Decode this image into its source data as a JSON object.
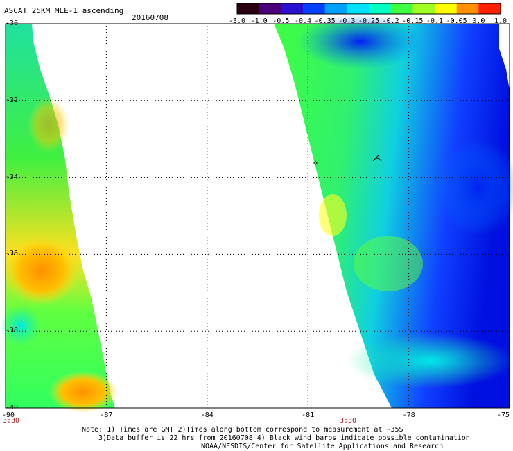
{
  "header": {
    "title": "ASCAT 25KM MLE-1 ascending",
    "date": "20160708"
  },
  "colorbar": {
    "labels": [
      "-3.0",
      "-1.0",
      "-0.5",
      "-0.4",
      "-0.35",
      "-0.3",
      "-0.25",
      "-0.2",
      "-0.15",
      "-0.1",
      "-0.05",
      "0.0",
      "1.0"
    ],
    "colors": [
      "#2a0010",
      "#4a007a",
      "#2a10d0",
      "#0040ff",
      "#00a0ff",
      "#00e0ff",
      "#00ffc0",
      "#40ff40",
      "#a0ff20",
      "#ffff00",
      "#ff9000",
      "#ff2000"
    ]
  },
  "axes": {
    "lat_labels": [
      "-30",
      "-32",
      "-34",
      "-36",
      "-38",
      "-40"
    ],
    "lon_labels": [
      "-90",
      "-87",
      "-84",
      "-81",
      "-78",
      "-75"
    ]
  },
  "times": {
    "left": "3:30",
    "right": "3:30"
  },
  "notes": {
    "line1": "Note: 1) Times are GMT 2)Times along bottom correspond to measurement at ~35S",
    "line2": "3)Data buffer is 22 hrs from 20160708 4) Black wind barbs indicate possible contamination",
    "line3": "NOAA/NESDIS/Center for Satellite Applications and Research"
  }
}
